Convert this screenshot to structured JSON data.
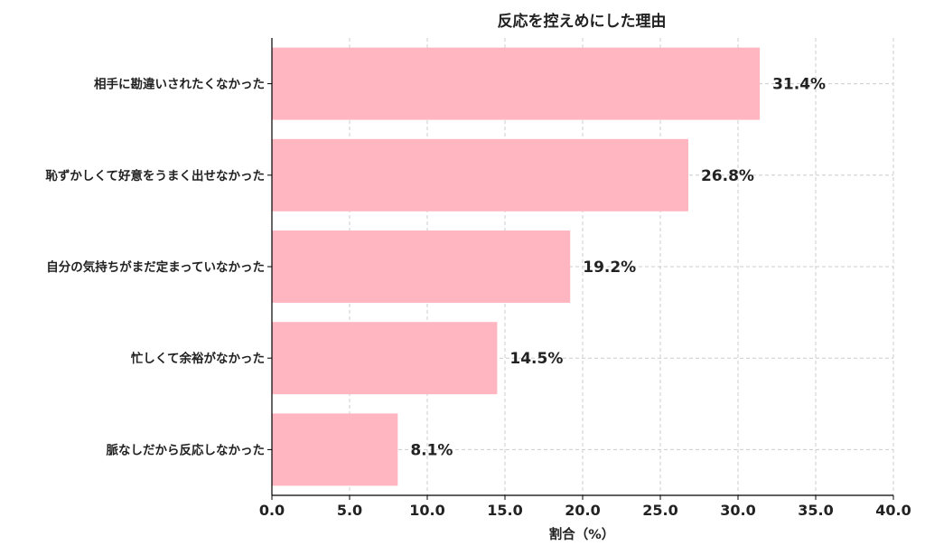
{
  "chart_data": {
    "type": "bar",
    "orientation": "horizontal",
    "title": "反応を控えめにした理由",
    "xlabel": "割合（%）",
    "ylabel": "",
    "xlim": [
      0,
      40
    ],
    "xticks": [
      "0.0",
      "5.0",
      "10.0",
      "15.0",
      "20.0",
      "25.0",
      "30.0",
      "35.0",
      "40.0"
    ],
    "grid": true,
    "categories": [
      "相手に勘違いされたくなかった",
      "恥ずかしくて好意をうまく出せなかった",
      "自分の気持ちがまだ定まっていなかった",
      "忙しくて余裕がなかった",
      "脈なしだから反応しなかった"
    ],
    "values": [
      31.4,
      26.8,
      19.2,
      14.5,
      8.1
    ],
    "value_labels": [
      "31.4%",
      "26.8%",
      "19.2%",
      "14.5%",
      "8.1%"
    ],
    "bar_color": "#ffb6c1",
    "grid_color": "#cccccc",
    "axis_color": "#000000"
  }
}
